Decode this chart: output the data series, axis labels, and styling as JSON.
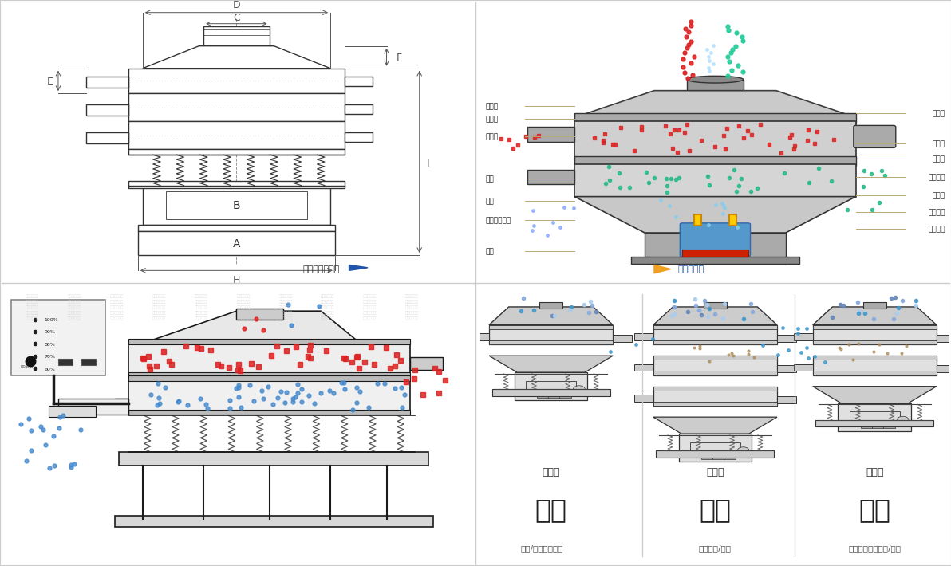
{
  "bg_color": "#ffffff",
  "border_color": "#cccccc",
  "label_color": "#333333",
  "dim_color": "#555555",
  "title_top_left": "外形尺寸示意图",
  "title_top_right": "结构示意图",
  "left_labels": [
    "进料口",
    "防尘盖",
    "出料口",
    "束环",
    "弹簧",
    "运输固定螺栓",
    "机座"
  ],
  "right_labels": [
    "筛　网",
    "网　架",
    "加重块",
    "上部重锤",
    "筛　盘",
    "振动电机",
    "下部重锤"
  ],
  "dim_labels": [
    "D",
    "C",
    "F",
    "E",
    "B",
    "A",
    "H",
    "I"
  ],
  "bottom_titles": [
    "分级",
    "过滤",
    "除杂"
  ],
  "bottom_subtitles": [
    "颗粒/粉末准确分级",
    "去除异物/结块",
    "去除液体中的颗粒/异物"
  ],
  "bottom_captions": [
    "单层式",
    "三层式",
    "双层式"
  ],
  "red_color": "#dd2222",
  "blue_color": "#4488cc",
  "green_color": "#22aa66",
  "cyan_color": "#44bbcc",
  "tan_color": "#aa8855",
  "machine_light": "#d8d8d8",
  "machine_mid": "#bbbbbb",
  "machine_dark": "#888888",
  "machine_line": "#333333",
  "arrow_orange": "#f0a020",
  "arrow_blue": "#2255aa",
  "label_line_color": "#b8a878"
}
